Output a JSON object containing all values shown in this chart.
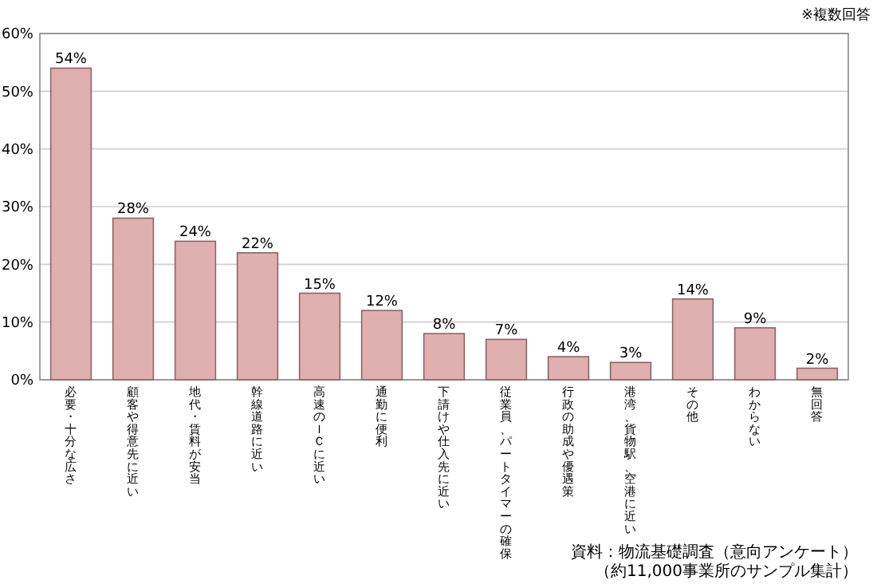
{
  "chart_data": {
    "type": "bar",
    "categories": [
      "必要・十分な広さ",
      "顧客や得意先に近い",
      "地代・賃料が安当",
      "幹線道路に近い",
      "高速のＩＣに近い",
      "通勤に便利",
      "下請けや仕入先に近い",
      "従業員、パートタイマーの確保",
      "行政の助成や優遇策",
      "港湾、貨物駅、空港に近い",
      "その他",
      "わからない",
      "無回答"
    ],
    "values": [
      54,
      28,
      24,
      22,
      15,
      12,
      8,
      7,
      4,
      3,
      14,
      9,
      2
    ],
    "color": "#e0b0b0",
    "ylim": [
      0,
      60
    ],
    "yticks": [
      {
        "value": 0,
        "label": "0%"
      },
      {
        "value": 10,
        "label": "10%"
      },
      {
        "value": 20,
        "label": "20%"
      },
      {
        "value": 30,
        "label": "30%"
      },
      {
        "value": 40,
        "label": "40%"
      },
      {
        "value": 50,
        "label": "50%"
      },
      {
        "value": 60,
        "label": "60%"
      }
    ],
    "grid": "y",
    "value_labels": [
      "54%",
      "28%",
      "24%",
      "22%",
      "15%",
      "12%",
      "8%",
      "7%",
      "4%",
      "3%",
      "14%",
      "9%",
      "2%"
    ],
    "annotations": [
      "※複数回答",
      "資料：物流基礎調査（意向アンケート）",
      "（約11,000事業所のサンプル集計）"
    ]
  }
}
